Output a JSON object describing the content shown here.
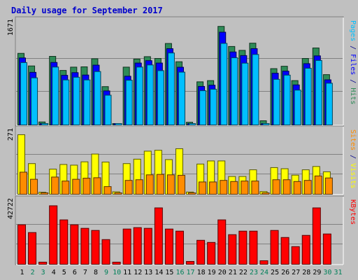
{
  "chart_data": {
    "type": "bar",
    "title": "Daily usage for September 2017",
    "x": [
      "1",
      "2",
      "3",
      "4",
      "5",
      "6",
      "7",
      "8",
      "9",
      "10",
      "11",
      "12",
      "13",
      "14",
      "15",
      "16",
      "17",
      "18",
      "19",
      "20",
      "21",
      "22",
      "23",
      "24",
      "25",
      "26",
      "27",
      "28",
      "29",
      "30",
      "31"
    ],
    "weekend_days": [
      2,
      3,
      9,
      10,
      16,
      17,
      23,
      24,
      30,
      31
    ],
    "panels": [
      {
        "name": "hits_files_pages",
        "ymax": 1671,
        "ymax_label": "1671",
        "legend": [
          {
            "text": "Pages",
            "color": "#00c0ff"
          },
          {
            "text": " / ",
            "color": "#00008b"
          },
          {
            "text": "Files",
            "color": "#0000ff"
          },
          {
            "text": " / ",
            "color": "#00008b"
          },
          {
            "text": "Hits",
            "color": "#2e8b57"
          }
        ],
        "series": [
          {
            "name": "Hits",
            "color": "#2e8b57",
            "values": [
              1195,
              985,
              50,
              1145,
              910,
              965,
              970,
              1105,
              640,
              20,
              965,
              1100,
              1140,
              1110,
              1360,
              1055,
              45,
              720,
              740,
              1645,
              1310,
              1245,
              1365,
              70,
              940,
              980,
              740,
              1110,
              1285,
              840,
              null
            ]
          },
          {
            "name": "Files",
            "color": "#0000ff",
            "values": [
              1165,
              925,
              45,
              1090,
              875,
              920,
              880,
              1045,
              615,
              15,
              860,
              1080,
              1120,
              1080,
              1320,
              1010,
              40,
              690,
              710,
              1595,
              1265,
              1205,
              1320,
              65,
              910,
              945,
              715,
              1070,
              1200,
              800,
              null
            ]
          },
          {
            "name": "Pages",
            "color": "#00bfff",
            "values": [
              1135,
              880,
              40,
              1060,
              845,
              890,
              845,
              985,
              590,
              10,
              840,
              1060,
              1095,
              1000,
              1295,
              975,
              35,
              665,
              690,
              1455,
              1215,
              1125,
              1270,
              60,
              855,
              925,
              675,
              1040,
              1170,
              790,
              null
            ]
          }
        ]
      },
      {
        "name": "visits_sites",
        "ymax": 271,
        "ymax_label": "271",
        "legend": [
          {
            "text": "Sites",
            "color": "#ff8c00"
          },
          {
            "text": " / ",
            "color": "#00008b"
          },
          {
            "text": "Visits",
            "color": "#ffff00"
          }
        ],
        "series": [
          {
            "name": "Visits",
            "color": "#ffff00",
            "values": [
              268,
              138,
              9,
              113,
              134,
              131,
              146,
              181,
              145,
              11,
              138,
              158,
              194,
              198,
              156,
              205,
              10,
              136,
              150,
              150,
              80,
              80,
              110,
              12,
              120,
              115,
              86,
              110,
              125,
              101,
              null
            ]
          },
          {
            "name": "Sites",
            "color": "#ff8c00",
            "values": [
              112,
              80,
              7,
              90,
              72,
              80,
              85,
              87,
              47,
              8,
              75,
              78,
              100,
              102,
              100,
              98,
              9,
              68,
              68,
              75,
              70,
              72,
              72,
              10,
              78,
              78,
              70,
              75,
              95,
              86,
              null
            ]
          }
        ]
      },
      {
        "name": "kbytes",
        "ymax": 42722,
        "ymax_label": "42722",
        "legend": [
          {
            "text": "KBytes",
            "color": "#ff0000"
          }
        ],
        "series": [
          {
            "name": "KBytes",
            "color": "#ff0000",
            "values": [
              28000,
              22500,
              1500,
              41500,
              31500,
              28000,
              25500,
              24000,
              17500,
              1500,
              25000,
              26000,
              25500,
              40000,
              25000,
              23500,
              2000,
              17000,
              15500,
              31500,
              21000,
              23500,
              23500,
              2500,
              24000,
              19000,
              12500,
              20500,
              40000,
              21500,
              null
            ]
          }
        ]
      }
    ]
  }
}
